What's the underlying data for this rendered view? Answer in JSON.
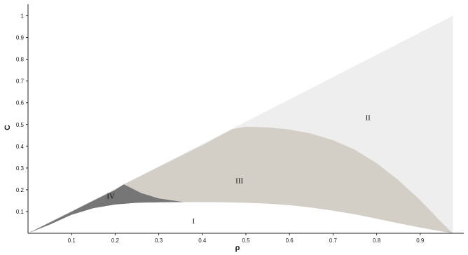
{
  "chart_data": {
    "type": "area",
    "xlabel": "ρ",
    "ylabel": "C",
    "xlim": [
      0,
      1
    ],
    "ylim": [
      0,
      1.05
    ],
    "x_ticks": [
      "0.1",
      "0.2",
      "0.3",
      "0.4",
      "0.5",
      "0.6",
      "0.7",
      "0.8",
      "0.9"
    ],
    "y_ticks": [
      "0.1",
      "0.2",
      "0.3",
      "0.4",
      "0.5",
      "0.6",
      "0.7",
      "0.8",
      "0.9",
      "1"
    ],
    "grid": false,
    "legend": "none",
    "regions": [
      {
        "label": "I",
        "color": "#ffffff",
        "label_at": [
          0.38,
          0.045
        ],
        "boundary": [
          [
            0.0,
            0.0
          ],
          [
            0.05,
            0.04
          ],
          [
            0.1,
            0.085
          ],
          [
            0.15,
            0.115
          ],
          [
            0.2,
            0.132
          ],
          [
            0.25,
            0.14
          ],
          [
            0.3,
            0.142
          ],
          [
            0.35,
            0.143
          ],
          [
            0.4,
            0.143
          ],
          [
            0.45,
            0.142
          ],
          [
            0.5,
            0.14
          ],
          [
            0.55,
            0.136
          ],
          [
            0.6,
            0.129
          ],
          [
            0.65,
            0.118
          ],
          [
            0.7,
            0.104
          ],
          [
            0.75,
            0.087
          ],
          [
            0.8,
            0.067
          ],
          [
            0.85,
            0.046
          ],
          [
            0.9,
            0.026
          ],
          [
            0.95,
            0.008
          ],
          [
            0.975,
            0.0
          ]
        ]
      },
      {
        "label": "II",
        "color": "#eeeeee",
        "label_at": [
          0.78,
          0.52
        ],
        "boundary": [
          [
            0.0,
            0.0
          ],
          [
            0.975,
            1.0
          ],
          [
            0.975,
            0.0
          ]
        ]
      },
      {
        "label": "III",
        "color": "#d3cfc7",
        "label_at": [
          0.485,
          0.23
        ],
        "boundary": [
          [
            0.22,
            0.225
          ],
          [
            0.3,
            0.305
          ],
          [
            0.4,
            0.405
          ],
          [
            0.47,
            0.48
          ],
          [
            0.5,
            0.49
          ],
          [
            0.55,
            0.487
          ],
          [
            0.6,
            0.477
          ],
          [
            0.65,
            0.458
          ],
          [
            0.7,
            0.428
          ],
          [
            0.75,
            0.384
          ],
          [
            0.8,
            0.322
          ],
          [
            0.85,
            0.244
          ],
          [
            0.9,
            0.152
          ],
          [
            0.95,
            0.048
          ],
          [
            0.975,
            0.0
          ]
        ]
      },
      {
        "label": "IV",
        "color": "#767676",
        "label_at": [
          0.19,
          0.16
        ],
        "boundary": [
          [
            0.0,
            0.0
          ],
          [
            0.1,
            0.1
          ],
          [
            0.15,
            0.15
          ],
          [
            0.2,
            0.2
          ],
          [
            0.22,
            0.225
          ],
          [
            0.26,
            0.185
          ],
          [
            0.3,
            0.16
          ],
          [
            0.36,
            0.143
          ]
        ]
      }
    ]
  }
}
